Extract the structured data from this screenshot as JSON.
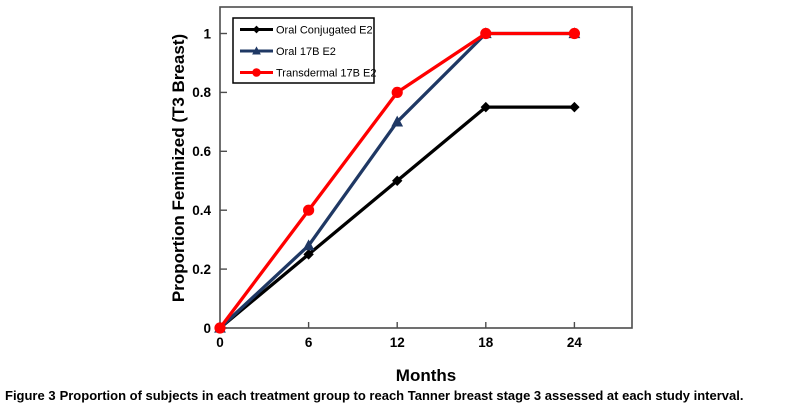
{
  "figure": {
    "caption_label": "Figure 3",
    "caption_text": "Proportion of subjects in each treatment group to reach Tanner breast stage 3 assessed at each study interval."
  },
  "chart_data": {
    "type": "line",
    "title": "",
    "xlabel": "Months",
    "ylabel": "Proportion Feminized (T3 Breast)",
    "x": [
      0,
      6,
      12,
      18,
      24
    ],
    "x_tick_labels": [
      "0",
      "6",
      "12",
      "18",
      "24"
    ],
    "y_ticks": [
      0,
      0.2,
      0.4,
      0.6,
      0.8,
      1
    ],
    "y_tick_labels": [
      "0",
      "0.2",
      "0.4",
      "0.6",
      "0.8",
      "1"
    ],
    "xlim": [
      0,
      27.9
    ],
    "ylim": [
      0,
      1.09
    ],
    "grid": false,
    "legend_position": "upper-left-inside",
    "frame_color": "#4d4d4d",
    "series": [
      {
        "name": "Oral Conjugated E2",
        "color": "#000000",
        "marker": "diamond",
        "values": [
          0,
          0.25,
          0.5,
          0.75,
          0.75
        ]
      },
      {
        "name": "Oral 17B E2",
        "color": "#1F3864",
        "marker": "triangle",
        "values": [
          0,
          0.28,
          0.7,
          1,
          1
        ]
      },
      {
        "name": "Transdermal 17B E2",
        "color": "#FF0000",
        "marker": "circle",
        "values": [
          0,
          0.4,
          0.8,
          1,
          1
        ]
      }
    ]
  }
}
